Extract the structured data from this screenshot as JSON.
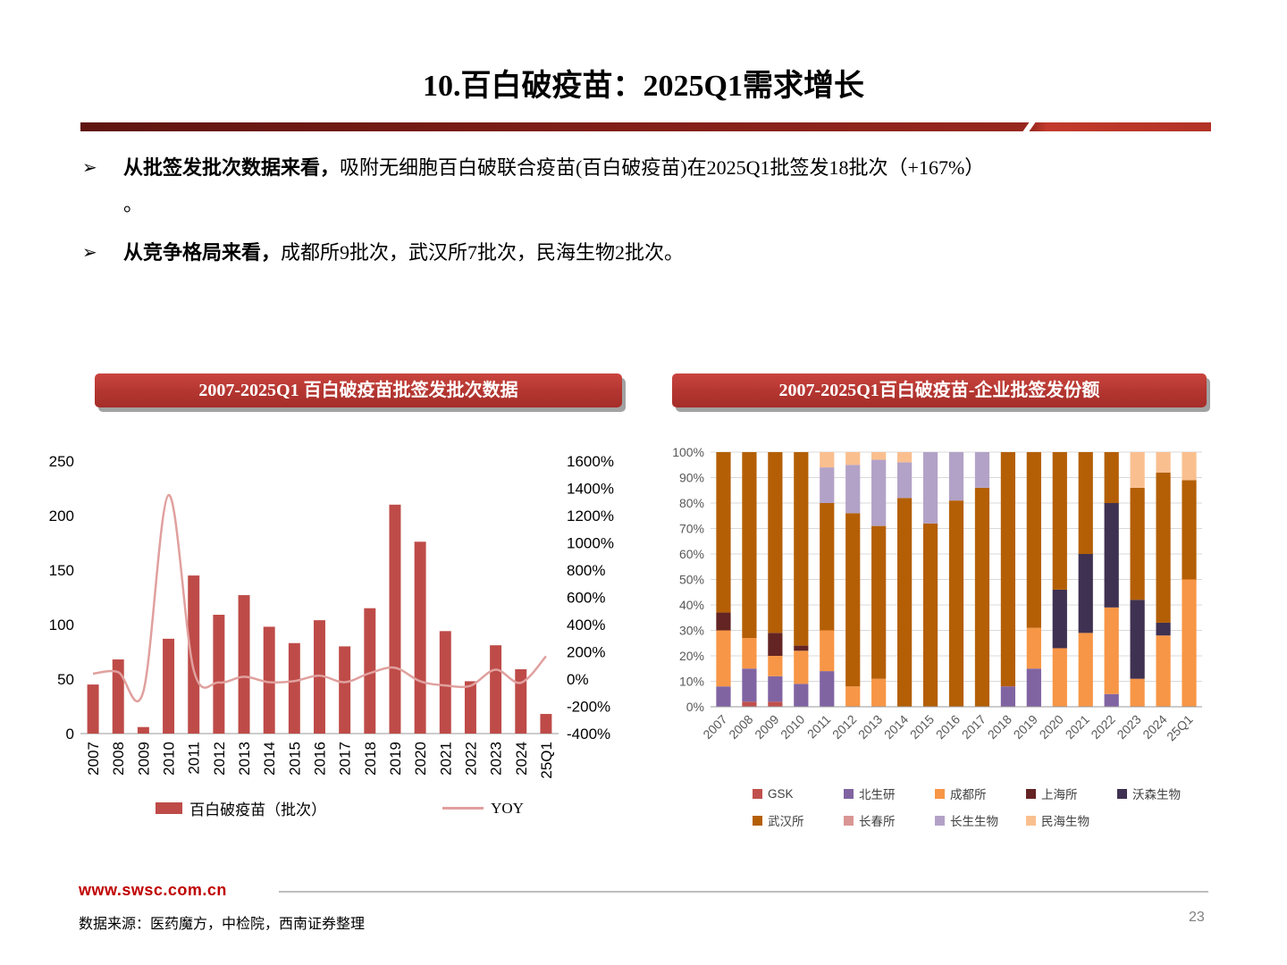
{
  "page": {
    "title": "10.百白破疫苗：2025Q1需求增长",
    "page_number": "23",
    "footer_url": "www.swsc.com.cn",
    "source_note": "数据来源：医药魔方，中检院，西南证券整理"
  },
  "bullets": {
    "arrow": "➢",
    "items": [
      {
        "bold": "从批签发批次数据来看，",
        "text": "吸附无细胞百白破联合疫苗(百白破疫苗)在2025Q1批签发18批次（+167%）",
        "text2": "。"
      },
      {
        "bold": "从竞争格局来看，",
        "text": "成都所9批次，武汉所7批次，民海生物2批次。",
        "text2": ""
      }
    ]
  },
  "chart_data": [
    {
      "type": "bar",
      "title": "2007-2025Q1 百白破疫苗批签发批次数据",
      "categories": [
        "2007",
        "2008",
        "2009",
        "2010",
        "2011",
        "2012",
        "2013",
        "2014",
        "2015",
        "2016",
        "2017",
        "2018",
        "2019",
        "2020",
        "2021",
        "2022",
        "2023",
        "2024",
        "25Q1"
      ],
      "bar_series": {
        "name": "百白破疫苗（批次）",
        "color": "#be4b48",
        "values": [
          45,
          68,
          6,
          87,
          145,
          109,
          127,
          98,
          83,
          104,
          80,
          115,
          210,
          176,
          94,
          48,
          81,
          59,
          18
        ]
      },
      "line_series": {
        "name": "YOY",
        "color": "#e0a09e",
        "values": [
          40,
          51,
          -91,
          1350,
          67,
          -25,
          17,
          -23,
          -15,
          25,
          -23,
          44,
          83,
          -16,
          -47,
          -49,
          69,
          -27,
          167
        ]
      },
      "left_axis": {
        "min": 0,
        "max": 250,
        "step": 50,
        "suffix": ""
      },
      "right_axis": {
        "min": -400,
        "max": 1600,
        "step": 200,
        "suffix": "%"
      },
      "legend_position": "bottom",
      "grid": false
    },
    {
      "type": "bar",
      "subtype": "stacked-100",
      "title": "2007-2025Q1百白破疫苗-企业批签发份额",
      "categories": [
        "2007",
        "2008",
        "2009",
        "2010",
        "2011",
        "2012",
        "2013",
        "2014",
        "2015",
        "2016",
        "2017",
        "2018",
        "2019",
        "2020",
        "2021",
        "2022",
        "2023",
        "2024",
        "25Q1"
      ],
      "series": [
        {
          "name": "GSK",
          "color": "#c0504d",
          "values": [
            0,
            2,
            2,
            0,
            0,
            0,
            0,
            0,
            0,
            0,
            0,
            0,
            0,
            0,
            0,
            0,
            0,
            0,
            0
          ]
        },
        {
          "name": "北生研",
          "color": "#8064a2",
          "values": [
            8,
            13,
            10,
            9,
            14,
            0,
            0,
            0,
            0,
            0,
            0,
            8,
            15,
            0,
            0,
            5,
            0,
            0,
            0
          ]
        },
        {
          "name": "成都所",
          "color": "#f79646",
          "values": [
            22,
            12,
            8,
            13,
            16,
            8,
            11,
            0,
            0,
            0,
            0,
            0,
            16,
            23,
            29,
            34,
            11,
            28,
            50
          ]
        },
        {
          "name": "上海所",
          "color": "#632423",
          "values": [
            7,
            0,
            9,
            2,
            0,
            0,
            0,
            0,
            0,
            0,
            0,
            0,
            0,
            0,
            0,
            0,
            0,
            0,
            0
          ]
        },
        {
          "name": "沃森生物",
          "color": "#3f3151",
          "values": [
            0,
            0,
            0,
            0,
            0,
            0,
            0,
            0,
            0,
            0,
            0,
            0,
            0,
            23,
            31,
            41,
            31,
            5,
            0
          ]
        },
        {
          "name": "武汉所",
          "color": "#b45f06",
          "values": [
            63,
            73,
            71,
            76,
            50,
            68,
            60,
            82,
            72,
            81,
            86,
            92,
            69,
            54,
            40,
            20,
            44,
            59,
            39
          ]
        },
        {
          "name": "长春所",
          "color": "#d99694",
          "values": [
            0,
            0,
            0,
            0,
            0,
            0,
            0,
            0,
            0,
            0,
            0,
            0,
            0,
            0,
            0,
            0,
            0,
            0,
            0
          ]
        },
        {
          "name": "长生生物",
          "color": "#b3a2c7",
          "values": [
            0,
            0,
            0,
            0,
            14,
            19,
            26,
            14,
            28,
            19,
            14,
            0,
            0,
            0,
            0,
            0,
            0,
            0,
            0
          ]
        },
        {
          "name": "民海生物",
          "color": "#fabf8f",
          "values": [
            0,
            0,
            0,
            0,
            6,
            5,
            3,
            4,
            0,
            0,
            0,
            0,
            0,
            0,
            0,
            0,
            14,
            8,
            11
          ]
        }
      ],
      "y_axis": {
        "min": 0,
        "max": 100,
        "step": 10,
        "suffix": "%"
      },
      "legend_position": "bottom",
      "grid": true
    }
  ]
}
